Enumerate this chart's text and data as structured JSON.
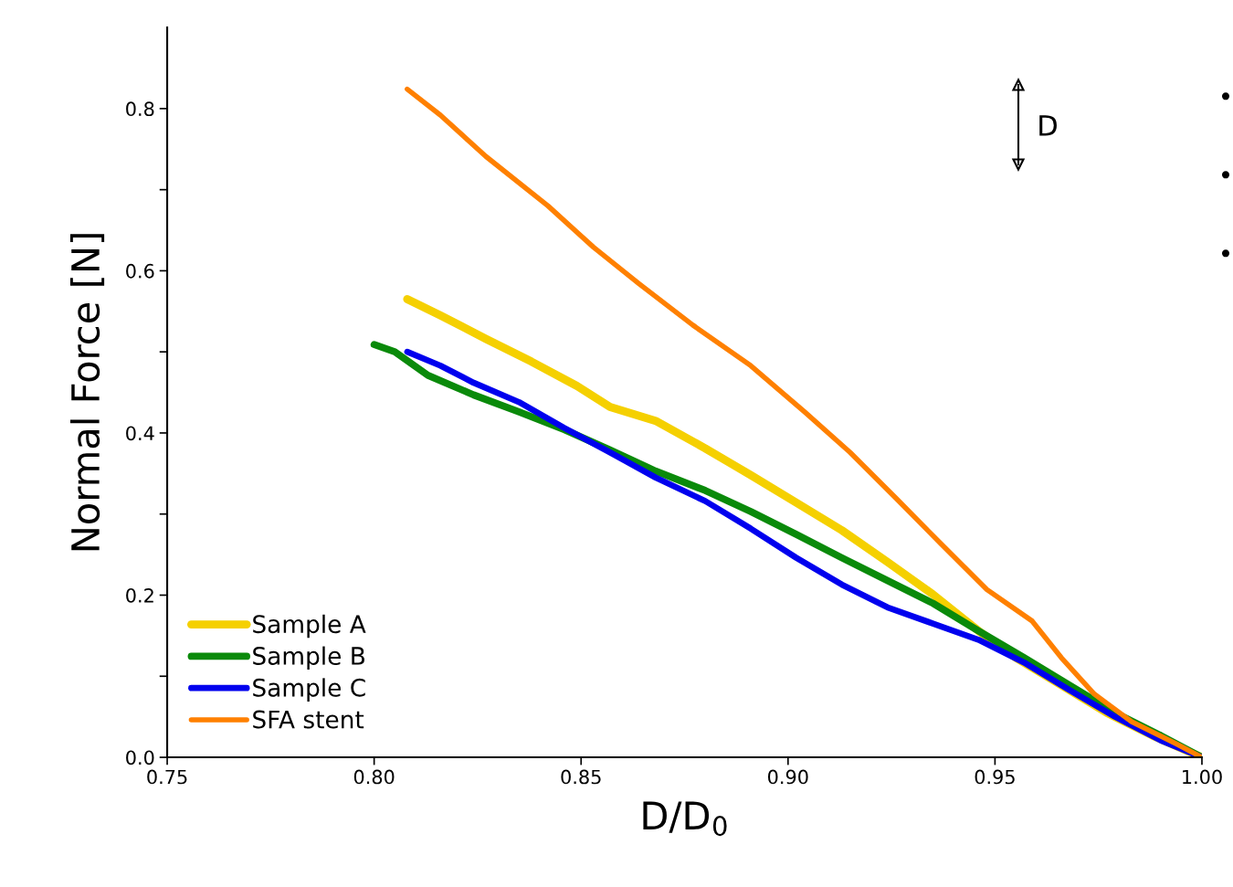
{
  "chart_data": {
    "type": "line",
    "xlabel": "D/D$_{0}$",
    "ylabel": "Normal Force [N]",
    "xlim": [
      0.75,
      1.0
    ],
    "xticks": [
      {
        "value": 0.75,
        "label": "0.75"
      },
      {
        "value": 0.8,
        "label": "0.80"
      },
      {
        "value": 0.85,
        "label": "0.85"
      },
      {
        "value": 0.9,
        "label": "0.90"
      },
      {
        "value": 0.95,
        "label": "0.95"
      },
      {
        "value": 1.0,
        "label": "1.00"
      }
    ],
    "ylim": [
      0,
      0.9
    ],
    "yticks": [
      {
        "value": 0,
        "label": "0.0"
      },
      {
        "value": 0.1,
        "label": null
      },
      {
        "value": 0.2,
        "label": "0.2"
      },
      {
        "value": 0.3,
        "label": null
      },
      {
        "value": 0.4,
        "label": "0.4"
      },
      {
        "value": 0.5,
        "label": null
      },
      {
        "value": 0.6,
        "label": "0.6"
      },
      {
        "value": 0.7,
        "label": null
      },
      {
        "value": 0.8,
        "label": "0.8"
      }
    ],
    "grid": false,
    "legend": "bottom left",
    "marker": "none",
    "line_style": "solid",
    "annotations": [
      "D",
      "•",
      "•",
      "•"
    ],
    "series": [
      {
        "name": "Sample A",
        "color": "#f5d000",
        "x": [
          0.808,
          0.816,
          0.827,
          0.838,
          0.849,
          0.857,
          0.868,
          0.88,
          0.891,
          0.902,
          0.913,
          0.924,
          0.935,
          0.946,
          0.955,
          0.966,
          0.977,
          0.988,
          1.0
        ],
        "values": [
          0.565,
          0.545,
          0.516,
          0.488,
          0.458,
          0.432,
          0.415,
          0.381,
          0.348,
          0.314,
          0.28,
          0.241,
          0.201,
          0.156,
          0.123,
          0.089,
          0.055,
          0.027,
          0.0
        ]
      },
      {
        "name": "Sample B",
        "color": "#0a8a0a",
        "x": [
          0.8,
          0.805,
          0.813,
          0.824,
          0.835,
          0.846,
          0.857,
          0.868,
          0.88,
          0.891,
          0.902,
          0.913,
          0.924,
          0.935,
          0.946,
          0.957,
          0.968,
          0.979,
          0.99,
          1.0
        ],
        "values": [
          0.509,
          0.5,
          0.471,
          0.447,
          0.426,
          0.404,
          0.379,
          0.353,
          0.329,
          0.303,
          0.275,
          0.246,
          0.218,
          0.19,
          0.156,
          0.123,
          0.089,
          0.055,
          0.027,
          0.0
        ]
      },
      {
        "name": "Sample C",
        "color": "#0000ee",
        "x": [
          0.808,
          0.816,
          0.824,
          0.835,
          0.846,
          0.857,
          0.868,
          0.88,
          0.891,
          0.902,
          0.913,
          0.924,
          0.935,
          0.946,
          0.957,
          0.968,
          0.979,
          0.99,
          1.0
        ],
        "values": [
          0.5,
          0.483,
          0.462,
          0.438,
          0.406,
          0.376,
          0.345,
          0.316,
          0.282,
          0.246,
          0.213,
          0.185,
          0.165,
          0.145,
          0.117,
          0.083,
          0.05,
          0.021,
          0.0
        ]
      },
      {
        "name": "SFA stent",
        "color": "#ff8000",
        "x": [
          0.808,
          0.816,
          0.827,
          0.842,
          0.853,
          0.864,
          0.877,
          0.891,
          0.904,
          0.915,
          0.926,
          0.937,
          0.948,
          0.959,
          0.966,
          0.974,
          0.983,
          0.994,
          1.0
        ],
        "values": [
          0.824,
          0.792,
          0.741,
          0.68,
          0.629,
          0.584,
          0.533,
          0.483,
          0.426,
          0.376,
          0.32,
          0.263,
          0.207,
          0.168,
          0.123,
          0.078,
          0.044,
          0.016,
          0.0
        ]
      }
    ]
  }
}
